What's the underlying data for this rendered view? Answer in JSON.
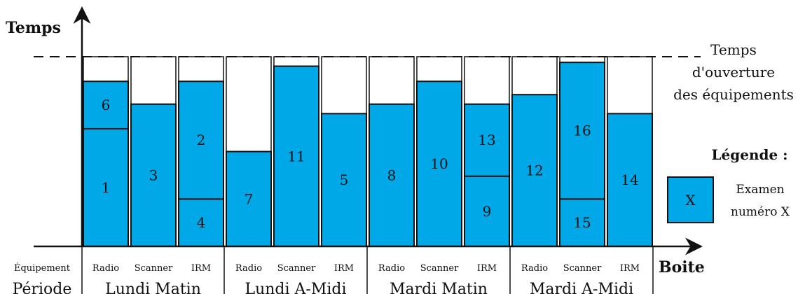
{
  "axis": {
    "y_label": "Temps",
    "x_label": "Boite"
  },
  "opening_time_label": [
    "Temps",
    "d'ouverture",
    "des équipements"
  ],
  "row_labels": {
    "equipment": "Équipement",
    "period": "Période"
  },
  "periods": [
    "Lundi Matin",
    "Lundi A-Midi",
    "Mardi Matin",
    "Mardi A-Midi"
  ],
  "equipments": [
    "Radio",
    "Scanner",
    "IRM"
  ],
  "legend": {
    "title": "Légende :",
    "box_text": "X",
    "caption": [
      "Examen",
      "numéro X"
    ]
  },
  "colors": {
    "exam_fill": "#00a8e8",
    "stroke": "#111111"
  },
  "chart_data": {
    "type": "bar",
    "opening_time": 100,
    "ylim": [
      0,
      100
    ],
    "boxes": [
      {
        "period": "Lundi Matin",
        "equipment": "Radio",
        "exams": [
          {
            "id": "1",
            "duration": 62
          },
          {
            "id": "6",
            "duration": 25
          }
        ]
      },
      {
        "period": "Lundi Matin",
        "equipment": "Scanner",
        "exams": [
          {
            "id": "3",
            "duration": 75
          }
        ]
      },
      {
        "period": "Lundi Matin",
        "equipment": "IRM",
        "exams": [
          {
            "id": "4",
            "duration": 25
          },
          {
            "id": "2",
            "duration": 62
          }
        ]
      },
      {
        "period": "Lundi A-Midi",
        "equipment": "Radio",
        "exams": [
          {
            "id": "7",
            "duration": 50
          }
        ]
      },
      {
        "period": "Lundi A-Midi",
        "equipment": "Scanner",
        "exams": [
          {
            "id": "11",
            "duration": 95
          }
        ]
      },
      {
        "period": "Lundi A-Midi",
        "equipment": "IRM",
        "exams": [
          {
            "id": "5",
            "duration": 70
          }
        ]
      },
      {
        "period": "Mardi Matin",
        "equipment": "Radio",
        "exams": [
          {
            "id": "8",
            "duration": 75
          }
        ]
      },
      {
        "period": "Mardi Matin",
        "equipment": "Scanner",
        "exams": [
          {
            "id": "10",
            "duration": 87
          }
        ]
      },
      {
        "period": "Mardi Matin",
        "equipment": "IRM",
        "exams": [
          {
            "id": "9",
            "duration": 37
          },
          {
            "id": "13",
            "duration": 38
          }
        ]
      },
      {
        "period": "Mardi A-Midi",
        "equipment": "Radio",
        "exams": [
          {
            "id": "12",
            "duration": 80
          }
        ]
      },
      {
        "period": "Mardi A-Midi",
        "equipment": "Scanner",
        "exams": [
          {
            "id": "15",
            "duration": 25
          },
          {
            "id": "16",
            "duration": 72
          }
        ]
      },
      {
        "period": "Mardi A-Midi",
        "equipment": "IRM",
        "exams": [
          {
            "id": "14",
            "duration": 70
          }
        ]
      }
    ]
  }
}
